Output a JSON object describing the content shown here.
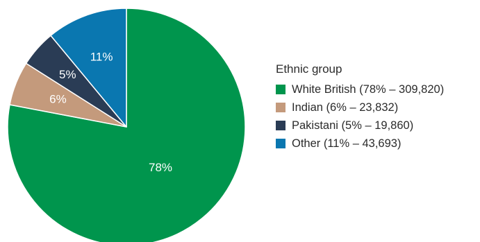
{
  "chart_data": {
    "type": "pie",
    "start": "12 o'clock, clockwise",
    "legend_title": "Ethnic group",
    "legend_position": "right",
    "slices": [
      {
        "name": "White British",
        "percent": 78,
        "value": 309820,
        "label": "78%",
        "legend_text": "White British (78% – 309,820)",
        "color": "#00954d",
        "label_style": "light"
      },
      {
        "name": "Indian",
        "percent": 6,
        "value": 23832,
        "label": "6%",
        "legend_text": "Indian (6% – 23,832)",
        "color": "#c49a7c",
        "label_style": "light"
      },
      {
        "name": "Pakistani",
        "percent": 5,
        "value": 19860,
        "label": "5%",
        "legend_text": "Pakistani (5% – 19,860)",
        "color": "#2a3c55",
        "label_style": "light"
      },
      {
        "name": "Other",
        "percent": 11,
        "value": 43693,
        "label": "11%",
        "legend_text": "Other (11% – 43,693)",
        "color": "#0a77b0",
        "label_style": "light"
      }
    ],
    "slice_border_color": "#ffffff"
  }
}
